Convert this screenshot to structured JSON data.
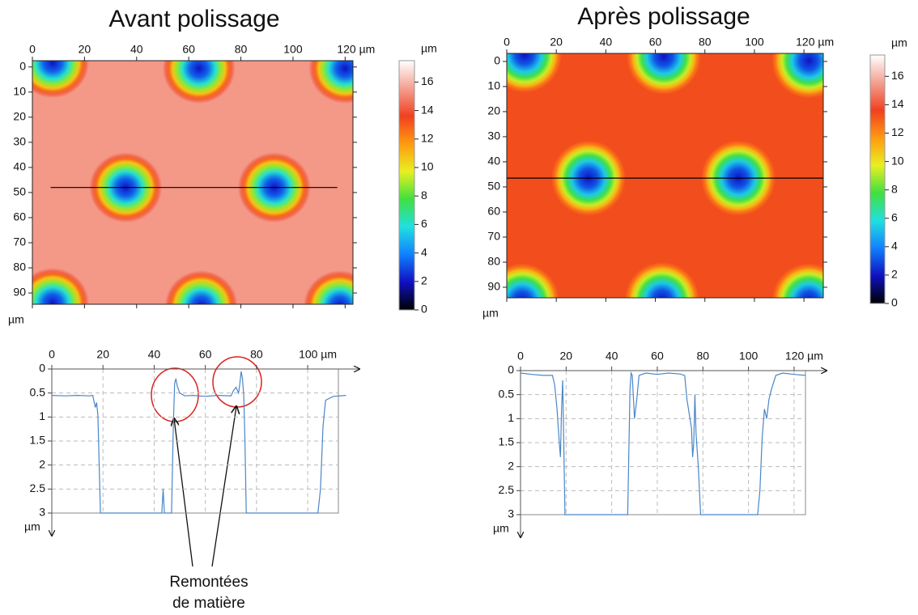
{
  "chart_data": [
    {
      "type": "heatmap",
      "title": "Avant polissage",
      "xlim": [
        0,
        123
      ],
      "xticks": [
        0,
        20,
        40,
        60,
        80,
        100,
        {
          "value": 120,
          "label": "120 µm"
        }
      ],
      "ylim": [
        -2.5,
        94.5
      ],
      "yticks": [
        0,
        10,
        20,
        30,
        40,
        50,
        60,
        70,
        80,
        90
      ],
      "ylabel": "µm",
      "zlim": [
        0,
        17.5
      ],
      "zticks": [
        0,
        2,
        4,
        6,
        8,
        10,
        12,
        14,
        16
      ],
      "zlabel": "µm",
      "colormap": [
        "#000000",
        "#1010c0",
        "#1080ff",
        "#20e0e0",
        "#40e040",
        "#e8f020",
        "#ff9a10",
        "#f04020",
        "#f4a090",
        "#ffffff"
      ],
      "surface": 15.4,
      "crater_floor": 2,
      "craters": [
        {
          "x": 35.8,
          "y": 48,
          "r": 14
        },
        {
          "x": 92.8,
          "y": 48,
          "r": 14
        },
        {
          "x": 7.8,
          "y": -1.6,
          "r": 14
        },
        {
          "x": 63.9,
          "y": 0.6,
          "r": 14
        },
        {
          "x": 120,
          "y": 0.6,
          "r": 14
        },
        {
          "x": 7.8,
          "y": 94,
          "r": 14
        },
        {
          "x": 64.8,
          "y": 95,
          "r": 14
        },
        {
          "x": 118,
          "y": 95,
          "r": 14
        }
      ],
      "section": {
        "y": 48,
        "x0": 7,
        "x1": 117
      }
    },
    {
      "type": "heatmap",
      "title": "Après polissage",
      "xlim": [
        0,
        127.8
      ],
      "xticks": [
        0,
        20,
        40,
        60,
        80,
        100,
        {
          "value": 120,
          "label": "120 µm"
        }
      ],
      "ylim": [
        -3.2,
        94.2
      ],
      "yticks": [
        0,
        10,
        20,
        30,
        40,
        50,
        60,
        70,
        80,
        90
      ],
      "ylabel": "µm",
      "zlim": [
        0,
        17.5
      ],
      "zticks": [
        0,
        2,
        4,
        6,
        8,
        10,
        12,
        14,
        16
      ],
      "zlabel": "µm",
      "colormap": [
        "#000000",
        "#1010c0",
        "#1080ff",
        "#20e0e0",
        "#40e040",
        "#e8f020",
        "#ff9a10",
        "#f04020",
        "#f4a090",
        "#ffffff"
      ],
      "surface": 13.3,
      "crater_floor": 2,
      "craters": [
        {
          "x": 33,
          "y": 46.5,
          "r": 15
        },
        {
          "x": 93.5,
          "y": 46.5,
          "r": 15
        },
        {
          "x": 7.2,
          "y": -2.6,
          "r": 15
        },
        {
          "x": 63.4,
          "y": -1.9,
          "r": 15
        },
        {
          "x": 122,
          "y": -0.3,
          "r": 15
        },
        {
          "x": 6.2,
          "y": 95.5,
          "r": 15
        },
        {
          "x": 62.7,
          "y": 95,
          "r": 15
        },
        {
          "x": 122,
          "y": 95.5,
          "r": 15
        }
      ],
      "section": {
        "y": 46.5,
        "x0": 0,
        "x1": 127.8
      }
    },
    {
      "type": "line",
      "color": "#4a86c8",
      "xlim": [
        0,
        112
      ],
      "xticks": [
        0,
        20,
        40,
        60,
        80,
        {
          "value": 100,
          "label": "100 µm"
        }
      ],
      "ylim": [
        0,
        3
      ],
      "yticks": [
        0,
        0.5,
        1,
        1.5,
        2,
        2.5,
        3
      ],
      "ylabel": "µm",
      "x": [
        0,
        5,
        10,
        15,
        16,
        17,
        17.5,
        18,
        19,
        20,
        25,
        30,
        35,
        40,
        43,
        43.5,
        44,
        44.5,
        46,
        46.8,
        47.5,
        48,
        48.5,
        49,
        50,
        52,
        55,
        60,
        65,
        70,
        71,
        72,
        73,
        73.5,
        74,
        74.5,
        75,
        75.5,
        76,
        80,
        90,
        100,
        104,
        105,
        106,
        107,
        110,
        115
      ],
      "values": [
        0.55,
        0.56,
        0.55,
        0.56,
        0.55,
        0.8,
        0.7,
        0.95,
        3,
        3,
        3,
        3,
        3,
        3,
        3,
        2.5,
        3,
        3,
        3,
        3,
        1.2,
        0.3,
        0.2,
        0.35,
        0.5,
        0.56,
        0.55,
        0.57,
        0.55,
        0.56,
        0.45,
        0.38,
        0.5,
        0.3,
        0.05,
        0.2,
        0.55,
        1.5,
        3,
        3,
        3,
        3,
        3,
        2.5,
        1.2,
        0.65,
        0.57,
        0.55
      ],
      "annotation": [
        "Remontées",
        "de matière"
      ]
    },
    {
      "type": "line",
      "color": "#4a86c8",
      "xlim": [
        0,
        125
      ],
      "xticks": [
        0,
        20,
        40,
        60,
        80,
        100,
        {
          "value": 120,
          "label": "120 µm"
        }
      ],
      "ylim": [
        0,
        3
      ],
      "yticks": [
        0,
        0.5,
        1,
        1.5,
        2,
        2.5,
        3
      ],
      "ylabel": "µm",
      "x": [
        0,
        5,
        10,
        14,
        15,
        16,
        17,
        17.5,
        18,
        18.5,
        19,
        19.5,
        20,
        25,
        30,
        35,
        40,
        45,
        47,
        48,
        48.5,
        49,
        50,
        51,
        52,
        55,
        60,
        65,
        70,
        72,
        73,
        74,
        75,
        75.5,
        76,
        76.5,
        77,
        78,
        79,
        85,
        90,
        95,
        100,
        104,
        105,
        106,
        107,
        108,
        109,
        110,
        112,
        115,
        120,
        125
      ],
      "values": [
        0.05,
        0.08,
        0.1,
        0.1,
        0.3,
        0.8,
        1.5,
        1.8,
        0.8,
        0.2,
        1.6,
        3,
        3,
        3,
        3,
        3,
        3,
        3,
        3,
        0.4,
        0.05,
        0.1,
        1.0,
        0.6,
        0.1,
        0.05,
        0.08,
        0.05,
        0.07,
        0.1,
        0.6,
        0.9,
        1.2,
        1.8,
        1.5,
        0.5,
        1.3,
        2.0,
        3,
        3,
        3,
        3,
        3,
        3,
        2.5,
        1.4,
        0.8,
        1.0,
        0.6,
        0.4,
        0.1,
        0.05,
        0.08,
        0.1
      ]
    }
  ]
}
